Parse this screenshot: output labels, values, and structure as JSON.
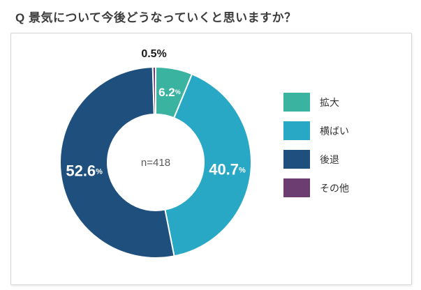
{
  "page": {
    "title": "Q 景気について今後どうなっていくと思いますか？"
  },
  "chart_data": {
    "type": "pie",
    "variant": "donut",
    "title": "Q 景気について今後どうなっていくと思いますか？",
    "center_label": "n=418",
    "unit": "%",
    "legend_position": "right",
    "start_angle_deg": 0,
    "direction": "clockwise",
    "categories": [
      "拡大",
      "横ばい",
      "後退",
      "その他"
    ],
    "values": [
      6.2,
      40.7,
      52.6,
      0.5
    ],
    "segments": [
      {
        "label": "拡大",
        "value": 6.2,
        "display_value": "6.2",
        "unit": "%",
        "color": "#3AB4A0",
        "label_placement": "inside"
      },
      {
        "label": "横ばい",
        "value": 40.7,
        "display_value": "40.7",
        "unit": "%",
        "color": "#29A8C5",
        "label_placement": "inside"
      },
      {
        "label": "後退",
        "value": 52.6,
        "display_value": "52.6",
        "unit": "%",
        "color": "#1E4F7D",
        "label_placement": "inside"
      },
      {
        "label": "その他",
        "value": 0.5,
        "display_value": "0.5",
        "unit": "%",
        "color": "#6C3D71",
        "label_placement": "outside"
      }
    ],
    "style": {
      "segment_stroke": "#ffffff",
      "inside_label_color": "#ffffff",
      "outside_label_color": "#1a1a1a",
      "center_label_color": "#595959"
    }
  }
}
